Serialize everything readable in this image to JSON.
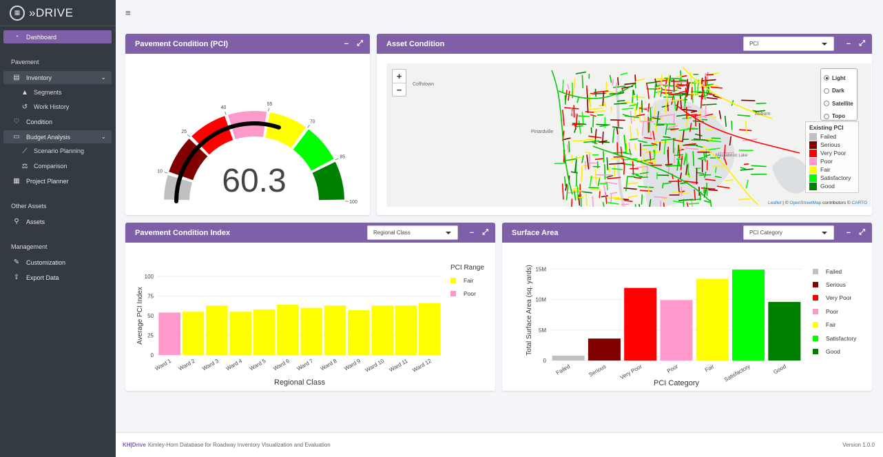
{
  "app": {
    "name": "»DRIVE",
    "logo_icon": "grid-logo-icon"
  },
  "sidebar": {
    "dashboard": "Dashboard",
    "pavement_header": "Pavement",
    "inventory": "Inventory",
    "segments": "Segments",
    "work_history": "Work History",
    "condition": "Condition",
    "budget_analysis": "Budget Analysis",
    "scenario_planning": "Scenario Planning",
    "comparison": "Comparison",
    "project_planner": "Project Planner",
    "other_assets_header": "Other Assets",
    "assets": "Assets",
    "management_header": "Management",
    "customization": "Customization",
    "export_data": "Export Data"
  },
  "panels": {
    "pci_gauge": {
      "title": "Pavement Condition (PCI)",
      "value": "60.3",
      "ticks": [
        "10",
        "25",
        "40",
        "55",
        "70",
        "85",
        "100"
      ]
    },
    "asset_condition": {
      "title": "Asset Condition",
      "select_value": "PCI",
      "zoom_in": "+",
      "zoom_out": "−",
      "layers": [
        "Light",
        "Dark",
        "Satellite",
        "Topo"
      ],
      "selected_layer": "Light",
      "legend_title": "Existing PCI",
      "legend": [
        "Failed",
        "Serious",
        "Very Poor",
        "Poor",
        "Fair",
        "Satisfactory",
        "Good"
      ],
      "places": [
        "Coffstown",
        "Pinardville",
        "Auburn",
        "Massabesic Lake"
      ],
      "attribution": {
        "leaflet": "Leaflet",
        "sep": "| ©",
        "osm": "OpenStreetMap",
        "contributors": "contributors ©",
        "carto": "CARTO"
      }
    },
    "pci_index": {
      "title": "Pavement Condition Index",
      "select_value": "Regional Class",
      "legend_title": "PCI Range",
      "legend": [
        "Fair",
        "Poor"
      ]
    },
    "surface_area": {
      "title": "Surface Area",
      "select_value": "PCI Category"
    }
  },
  "colors": {
    "accent": "#7e5fa8",
    "failed": "#c0c0c0",
    "serious": "#800000",
    "very_poor": "#ff0000",
    "poor": "#ff99cc",
    "fair": "#ffff00",
    "satisfactory": "#00ff00",
    "good": "#008000"
  },
  "chart_data": [
    {
      "type": "bar",
      "title": "Pavement Condition Index",
      "xlabel": "Regional Class",
      "ylabel": "Average PCI Index",
      "ylim": [
        0,
        100
      ],
      "yticks": [
        0,
        25,
        50,
        75,
        100
      ],
      "categories": [
        "Ward 1",
        "Ward 2",
        "Ward 3",
        "Ward 4",
        "Ward 5",
        "Ward 6",
        "Ward 7",
        "Ward 8",
        "Ward 9",
        "Ward 10",
        "Ward 11",
        "Ward 12"
      ],
      "values": [
        54,
        55,
        63,
        55,
        58,
        64,
        60,
        63,
        57,
        63,
        63,
        66
      ],
      "series_range": [
        "Poor",
        "Fair",
        "Fair",
        "Fair",
        "Fair",
        "Fair",
        "Fair",
        "Fair",
        "Fair",
        "Fair",
        "Fair",
        "Fair"
      ],
      "legend_title": "PCI Range",
      "legend": [
        "Fair",
        "Poor"
      ],
      "legend_position": "right",
      "grid": true
    },
    {
      "type": "bar",
      "title": "Surface Area",
      "xlabel": "PCI Category",
      "ylabel": "Total Surface Area (sq. yards)",
      "yticks": [
        0,
        5000000,
        10000000,
        15000000
      ],
      "ytick_labels": [
        "0",
        "5M",
        "10M",
        "15M"
      ],
      "ylim": [
        0,
        16500000
      ],
      "categories": [
        "Failed",
        "Serious",
        "Very Poor",
        "Poor",
        "Fair",
        "Satisfactory",
        "Good"
      ],
      "values": [
        800000,
        3600000,
        11900000,
        9900000,
        13400000,
        14900000,
        9600000
      ],
      "legend": [
        "Failed",
        "Serious",
        "Very Poor",
        "Poor",
        "Fair",
        "Satisfactory",
        "Good"
      ],
      "legend_position": "right",
      "grid": true
    }
  ],
  "footer": {
    "kh": "KH|Drive",
    "text": "Kimley-Horn Database for Roadway Inventory Visualization and Evaluation",
    "version": "Version 1.0.0"
  }
}
